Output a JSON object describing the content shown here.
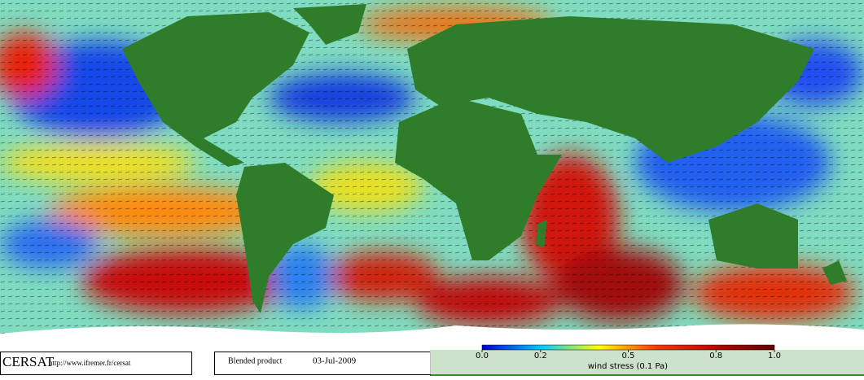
{
  "header": {
    "logo": "CERSAT",
    "url": "http://www.ifremer.fr/cersat",
    "product": "Blended product",
    "date": "03-Jul-2009"
  },
  "colorbar": {
    "label": "wind stress (0.1 Pa)",
    "lim": [
      0,
      1
    ],
    "ticks": [
      {
        "value": 0,
        "label": "0.0"
      },
      0.2,
      0.5,
      0.8,
      {
        "value": 1,
        "label": "1.0"
      }
    ]
  }
}
